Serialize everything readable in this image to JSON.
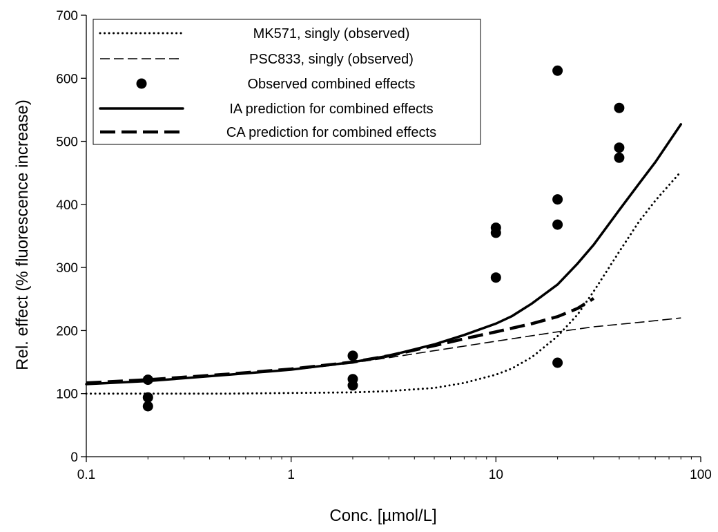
{
  "chart_data": {
    "type": "scatter",
    "title": "",
    "xlabel": "Conc. [µmol/L]",
    "ylabel": "Rel. effect (% fluorescence increase)",
    "xscale": "log",
    "xlim": [
      0.1,
      100
    ],
    "ylim": [
      0,
      700
    ],
    "xticks": [
      0.1,
      1,
      10,
      100
    ],
    "xtick_labels": [
      "0.1",
      "1",
      "10",
      "100"
    ],
    "yticks": [
      0,
      100,
      200,
      300,
      400,
      500,
      600,
      700
    ],
    "ytick_labels": [
      "0",
      "100",
      "200",
      "300",
      "400",
      "500",
      "600",
      "700"
    ],
    "grid": false,
    "legend_position": "top-left",
    "series": [
      {
        "name": "MK571, singly (observed)",
        "kind": "line",
        "style": "dotted",
        "color": "#000000",
        "x": [
          0.1,
          0.2,
          0.5,
          1,
          2,
          3,
          5,
          7,
          10,
          12,
          15,
          20,
          25,
          30,
          40,
          50,
          60,
          80
        ],
        "y": [
          100,
          100,
          100,
          101,
          102,
          104,
          109,
          117,
          130,
          140,
          158,
          191,
          225,
          262,
          325,
          373,
          406,
          452
        ]
      },
      {
        "name": "PSC833, singly (observed)",
        "kind": "line",
        "style": "thin-dashed",
        "color": "#000000",
        "x": [
          0.1,
          0.2,
          0.5,
          1,
          2,
          3,
          5,
          10,
          20,
          30,
          50,
          80
        ],
        "y": [
          115,
          120,
          130,
          138,
          149,
          157,
          168,
          183,
          198,
          206,
          213,
          220
        ]
      },
      {
        "name": "Observed combined effects",
        "kind": "scatter",
        "color": "#000000",
        "x": [
          0.2,
          0.2,
          0.2,
          2,
          2,
          2,
          10,
          10,
          10,
          20,
          20,
          20,
          20,
          40,
          40,
          40
        ],
        "y": [
          122,
          94,
          80,
          160,
          123,
          113,
          363,
          355,
          284,
          612,
          408,
          368,
          149,
          553,
          490,
          474
        ]
      },
      {
        "name": "IA prediction for combined effects",
        "kind": "line",
        "style": "solid-thick",
        "color": "#000000",
        "x": [
          0.1,
          0.2,
          0.5,
          1,
          2,
          3,
          5,
          7,
          10,
          12,
          15,
          20,
          25,
          30,
          40,
          50,
          60,
          80
        ],
        "y": [
          115,
          120,
          130,
          138,
          150,
          160,
          178,
          193,
          211,
          223,
          243,
          273,
          306,
          336,
          391,
          433,
          467,
          527
        ]
      },
      {
        "name": "CA prediction for combined effects",
        "kind": "line",
        "style": "thick-dashed",
        "color": "#000000",
        "x": [
          0.1,
          0.2,
          0.5,
          1,
          2,
          3,
          5,
          7,
          10,
          15,
          20,
          25,
          30
        ],
        "y": [
          117,
          122,
          131,
          139,
          150,
          160,
          176,
          187,
          198,
          211,
          222,
          235,
          251
        ]
      }
    ]
  }
}
